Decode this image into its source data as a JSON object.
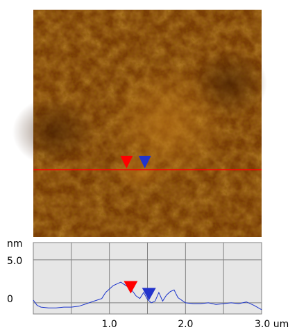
{
  "colors": {
    "afm_dark": "#5a2b04",
    "afm_mid": "#8a4c0a",
    "afm_light": "#d08a1c",
    "scan_line": "#ff0000",
    "cursor_red": "#ff0000",
    "cursor_blue": "#2233cc",
    "plot_bg": "#e6e6e6",
    "profile_line": "#1a33cc",
    "grid": "#808080"
  },
  "chart_data": {
    "type": "line",
    "title": "",
    "xlabel": "",
    "ylabel": "",
    "y_unit": "nm",
    "x_unit": "um",
    "xlim": [
      0,
      3.0
    ],
    "ylim": [
      -1.3,
      7.0
    ],
    "x_ticks": [
      1.0,
      2.0,
      3.0
    ],
    "x_tick_labels": [
      "1.0",
      "2.0",
      "3.0 um"
    ],
    "x_gridlines": [
      0.5,
      1.0,
      1.5,
      2.0,
      2.5
    ],
    "y_ticks": [
      0,
      5.0
    ],
    "y_tick_labels": [
      "0",
      "5.0"
    ],
    "grid": true,
    "series": [
      {
        "name": "",
        "color": "#1a33cc",
        "x": [
          0.0,
          0.05,
          0.1,
          0.2,
          0.3,
          0.4,
          0.5,
          0.6,
          0.7,
          0.8,
          0.9,
          0.95,
          1.0,
          1.05,
          1.1,
          1.15,
          1.2,
          1.25,
          1.3,
          1.35,
          1.4,
          1.45,
          1.5,
          1.55,
          1.6,
          1.65,
          1.7,
          1.75,
          1.8,
          1.85,
          1.9,
          2.0,
          2.1,
          2.2,
          2.3,
          2.4,
          2.5,
          2.6,
          2.7,
          2.8,
          2.9,
          3.0
        ],
        "values": [
          0.3,
          -0.3,
          -0.5,
          -0.6,
          -0.6,
          -0.5,
          -0.5,
          -0.4,
          -0.1,
          0.2,
          0.5,
          1.2,
          1.6,
          2.0,
          2.2,
          2.4,
          2.1,
          1.8,
          1.4,
          0.8,
          0.5,
          1.2,
          0.4,
          0.0,
          0.2,
          1.2,
          0.2,
          0.9,
          1.3,
          1.5,
          0.6,
          0.0,
          -0.1,
          -0.1,
          0.0,
          -0.2,
          -0.1,
          0.0,
          -0.1,
          0.1,
          -0.3,
          -0.8
        ]
      }
    ],
    "cursors": [
      {
        "name": "red-cursor",
        "x": 1.28,
        "y": 1.4,
        "color": "#ff0000"
      },
      {
        "name": "blue-cursor",
        "x": 1.52,
        "y": 0.6,
        "color": "#2233cc"
      }
    ]
  },
  "afm_image": {
    "scan_line_fraction": 0.704,
    "cursors": [
      {
        "name": "red-cursor",
        "x_um": 1.28,
        "color": "#ff0000"
      },
      {
        "name": "blue-cursor",
        "x_um": 1.52,
        "color": "#2233cc"
      }
    ]
  },
  "labels": {
    "y_unit": "nm",
    "y_top": "5.0",
    "y_zero": "0"
  }
}
